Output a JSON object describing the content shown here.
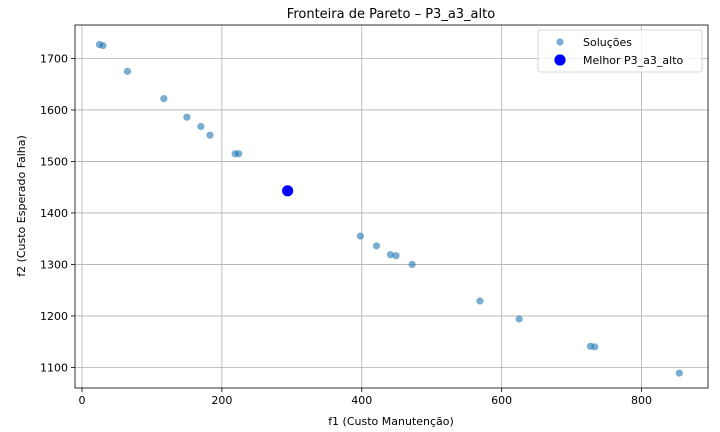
{
  "chart_data": {
    "type": "scatter",
    "title": "Fronteira de Pareto – P3_a3_alto",
    "xlabel": "f1 (Custo Manutenção)",
    "ylabel": "f2 (Custo Esperado Falha)",
    "xlim": [
      -10,
      895
    ],
    "ylim": [
      1060,
      1765
    ],
    "xticks": [
      0,
      200,
      400,
      600,
      800
    ],
    "yticks": [
      1100,
      1200,
      1300,
      1400,
      1500,
      1600,
      1700
    ],
    "grid": true,
    "legend_position": "upper right",
    "series": [
      {
        "name": "Soluções",
        "color": "#1f77b4",
        "alpha": 0.6,
        "points": [
          [
            25,
            1727
          ],
          [
            30,
            1725
          ],
          [
            65,
            1675
          ],
          [
            117,
            1622
          ],
          [
            150,
            1586
          ],
          [
            170,
            1568
          ],
          [
            183,
            1551
          ],
          [
            219,
            1515
          ],
          [
            224,
            1515
          ],
          [
            398,
            1355
          ],
          [
            421,
            1336
          ],
          [
            441,
            1319
          ],
          [
            449,
            1317
          ],
          [
            472,
            1300
          ],
          [
            569,
            1229
          ],
          [
            625,
            1194
          ],
          [
            727,
            1141
          ],
          [
            733,
            1140
          ],
          [
            854,
            1089
          ]
        ]
      },
      {
        "name": "Melhor P3_a3_alto",
        "color": "#0000ff",
        "alpha": 1,
        "points": [
          [
            294,
            1443
          ]
        ]
      }
    ]
  }
}
